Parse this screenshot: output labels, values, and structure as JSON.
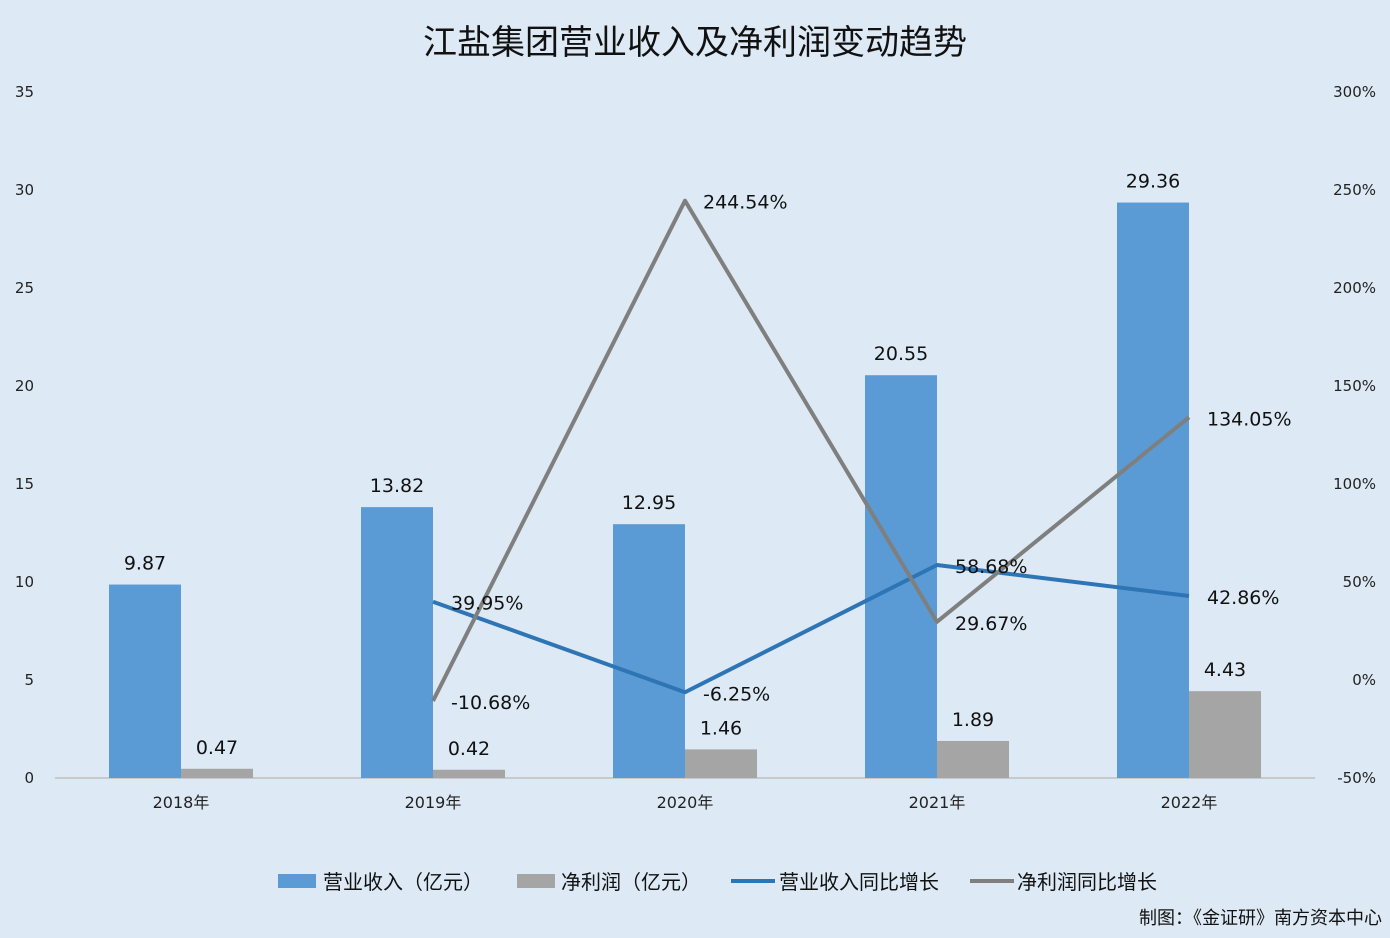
{
  "chart_data": {
    "type": "bar",
    "title": "江盐集团营业收入及净利润变动趋势",
    "categories": [
      "2018年",
      "2019年",
      "2020年",
      "2021年",
      "2022年"
    ],
    "y_left": {
      "ticks": [
        "0",
        "5",
        "10",
        "15",
        "20",
        "25",
        "30",
        "35"
      ],
      "ylim": [
        0,
        35
      ]
    },
    "y_right": {
      "ticks": [
        "-50%",
        "0%",
        "50%",
        "100%",
        "150%",
        "200%",
        "250%",
        "300%"
      ],
      "ylim": [
        -50,
        300
      ]
    },
    "bar_series": [
      {
        "name": "营业收入（亿元）",
        "color": "#5b9bd5",
        "values": [
          9.87,
          13.82,
          12.95,
          20.55,
          29.36
        ],
        "labels": [
          "9.87",
          "13.82",
          "12.95",
          "20.55",
          "29.36"
        ]
      },
      {
        "name": "净利润（亿元）",
        "color": "#a5a5a5",
        "values": [
          0.47,
          0.42,
          1.46,
          1.89,
          4.43
        ],
        "labels": [
          "0.47",
          "0.42",
          "1.46",
          "1.89",
          "4.43"
        ]
      }
    ],
    "line_series": [
      {
        "name": "营业收入同比增长",
        "color": "#2e75b6",
        "values": [
          null,
          39.95,
          -6.25,
          58.68,
          42.86
        ],
        "labels": [
          "",
          "39.95%",
          "-6.25%",
          "58.68%",
          "42.86%"
        ]
      },
      {
        "name": "净利润同比增长",
        "color": "#7f7f7f",
        "values": [
          null,
          -10.68,
          244.54,
          29.67,
          134.05
        ],
        "labels": [
          "",
          "-10.68%",
          "244.54%",
          "29.67%",
          "134.05%"
        ]
      }
    ],
    "legend_position": "bottom",
    "grid": false
  },
  "credit": "制图：《金证研》南方资本中心"
}
